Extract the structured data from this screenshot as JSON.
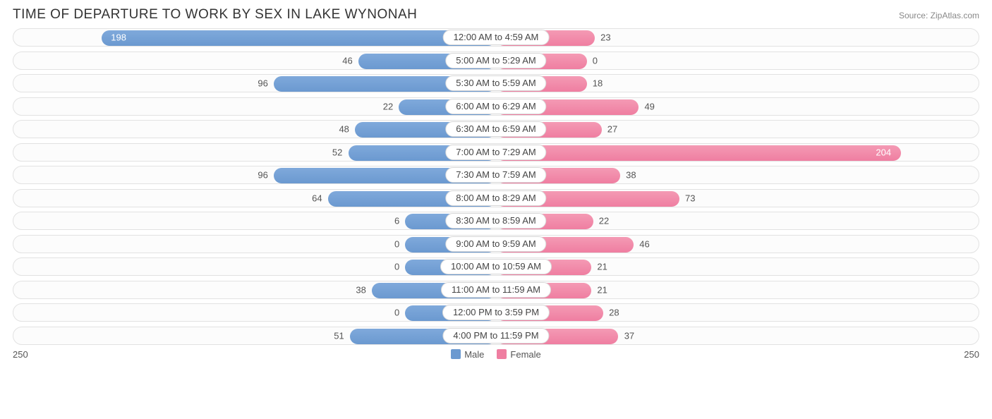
{
  "title": "TIME OF DEPARTURE TO WORK BY SEX IN LAKE WYNONAH",
  "source": "Source: ZipAtlas.com",
  "axis_max": 250,
  "axis_left_label": "250",
  "axis_right_label": "250",
  "legend": {
    "male": {
      "label": "Male",
      "color": "#6b99d0"
    },
    "female": {
      "label": "Female",
      "color": "#ef7ea1"
    }
  },
  "label_half_width_pct": 6.2,
  "min_bar_pct": 3.2,
  "rows": [
    {
      "label": "12:00 AM to 4:59 AM",
      "male": 198,
      "female": 23
    },
    {
      "label": "5:00 AM to 5:29 AM",
      "male": 46,
      "female": 0
    },
    {
      "label": "5:30 AM to 5:59 AM",
      "male": 96,
      "female": 18
    },
    {
      "label": "6:00 AM to 6:29 AM",
      "male": 22,
      "female": 49
    },
    {
      "label": "6:30 AM to 6:59 AM",
      "male": 48,
      "female": 27
    },
    {
      "label": "7:00 AM to 7:29 AM",
      "male": 52,
      "female": 204
    },
    {
      "label": "7:30 AM to 7:59 AM",
      "male": 96,
      "female": 38
    },
    {
      "label": "8:00 AM to 8:29 AM",
      "male": 64,
      "female": 73
    },
    {
      "label": "8:30 AM to 8:59 AM",
      "male": 6,
      "female": 22
    },
    {
      "label": "9:00 AM to 9:59 AM",
      "male": 0,
      "female": 46
    },
    {
      "label": "10:00 AM to 10:59 AM",
      "male": 0,
      "female": 21
    },
    {
      "label": "11:00 AM to 11:59 AM",
      "male": 38,
      "female": 21
    },
    {
      "label": "12:00 PM to 3:59 PM",
      "male": 0,
      "female": 28
    },
    {
      "label": "4:00 PM to 11:59 PM",
      "male": 51,
      "female": 37
    }
  ],
  "colors": {
    "track_bg": "#fcfcfc",
    "track_border": "#e2e2e2",
    "text": "#555555",
    "title": "#333333"
  }
}
